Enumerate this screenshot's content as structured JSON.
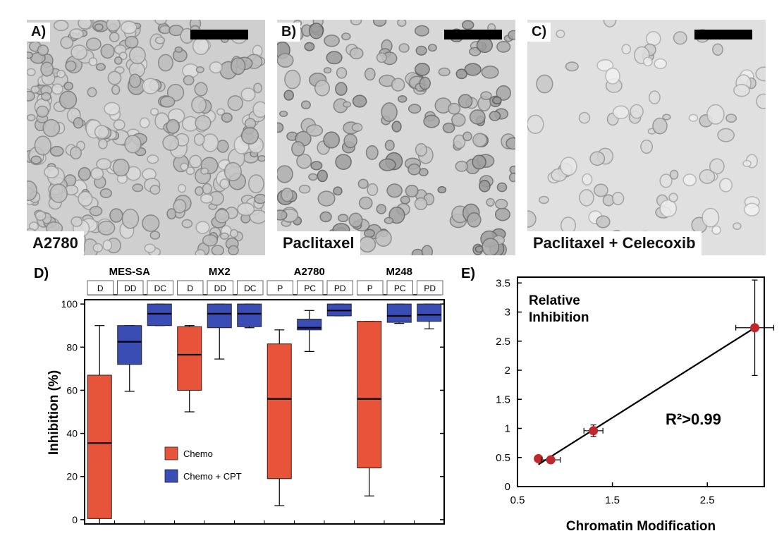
{
  "micrographs": [
    {
      "panel": "A)",
      "caption": "A2780",
      "bg": "#cfcfcf",
      "cellDensity": 0.95,
      "darkness": 0.55
    },
    {
      "panel": "B)",
      "caption": "Paclitaxel",
      "bg": "#d8d8d8",
      "cellDensity": 0.6,
      "darkness": 0.8
    },
    {
      "panel": "C)",
      "caption": "Paclitaxel + Celecoxib",
      "bg": "#e0e0e0",
      "cellDensity": 0.25,
      "darkness": 0.35
    }
  ],
  "chart_data": [
    {
      "panel": "D)",
      "type": "box",
      "ylabel": "Inhibition (%)",
      "ylim": [
        -2,
        102
      ],
      "yticks": [
        0,
        20,
        40,
        60,
        80,
        100
      ],
      "groups": [
        {
          "name": "MES-SA",
          "labels": [
            "D",
            "DD",
            "DC"
          ]
        },
        {
          "name": "MX2",
          "labels": [
            "D",
            "DD",
            "DC"
          ]
        },
        {
          "name": "A2780",
          "labels": [
            "P",
            "PC",
            "PD"
          ]
        },
        {
          "name": "M248",
          "labels": [
            "P",
            "PC",
            "PD"
          ]
        }
      ],
      "legend": [
        {
          "label": "Chemo",
          "color": "#e8543a"
        },
        {
          "label": "Chemo + CPT",
          "color": "#3a4db5"
        }
      ],
      "boxes": [
        {
          "group": 0,
          "slot": 0,
          "series": "Chemo",
          "min": -2,
          "q1": 0.5,
          "median": 35.5,
          "q3": 67,
          "max": 90
        },
        {
          "group": 0,
          "slot": 1,
          "series": "Chemo + CPT",
          "min": 59.5,
          "q1": 72,
          "median": 82.5,
          "q3": 90,
          "max": 90
        },
        {
          "group": 0,
          "slot": 2,
          "series": "Chemo + CPT",
          "min": 90,
          "q1": 90,
          "median": 95.5,
          "q3": 100,
          "max": 100
        },
        {
          "group": 1,
          "slot": 0,
          "series": "Chemo",
          "min": 50,
          "q1": 60,
          "median": 76.5,
          "q3": 89.5,
          "max": 90
        },
        {
          "group": 1,
          "slot": 1,
          "series": "Chemo + CPT",
          "min": 74.5,
          "q1": 89,
          "median": 95.5,
          "q3": 100,
          "max": 100
        },
        {
          "group": 1,
          "slot": 2,
          "series": "Chemo + CPT",
          "min": 89,
          "q1": 89.5,
          "median": 95.5,
          "q3": 100,
          "max": 100
        },
        {
          "group": 2,
          "slot": 0,
          "series": "Chemo",
          "min": 6.5,
          "q1": 19,
          "median": 56,
          "q3": 81.5,
          "max": 88
        },
        {
          "group": 2,
          "slot": 1,
          "series": "Chemo + CPT",
          "min": 78,
          "q1": 88,
          "median": 89,
          "q3": 93,
          "max": 97
        },
        {
          "group": 2,
          "slot": 2,
          "series": "Chemo + CPT",
          "min": 94.5,
          "q1": 94.5,
          "median": 97,
          "q3": 100,
          "max": 100
        },
        {
          "group": 3,
          "slot": 0,
          "series": "Chemo",
          "min": 11,
          "q1": 24,
          "median": 56,
          "q3": 92,
          "max": 92
        },
        {
          "group": 3,
          "slot": 1,
          "series": "Chemo + CPT",
          "min": 91,
          "q1": 91.5,
          "median": 94.5,
          "q3": 100,
          "max": 100
        },
        {
          "group": 3,
          "slot": 2,
          "series": "Chemo + CPT",
          "min": 88.5,
          "q1": 92,
          "median": 95,
          "q3": 100,
          "max": 100
        }
      ]
    },
    {
      "panel": "E)",
      "type": "scatter",
      "title": "Relative Inhibition",
      "xlabel": "Chromatin Modification",
      "xlim": [
        0.5,
        3.1
      ],
      "ylim": [
        0,
        3.6
      ],
      "xticks": [
        "0.5",
        "1.5",
        "2.5"
      ],
      "xtickValues": [
        0.5,
        1.5,
        2.5
      ],
      "yticks": [
        "0",
        "0.5",
        "1",
        "1.5",
        "2",
        "2.5",
        "3",
        "3.5"
      ],
      "ytickValues": [
        0,
        0.5,
        1,
        1.5,
        2,
        2.5,
        3,
        3.5
      ],
      "annotation": "R²>0.99",
      "pointColor": "#c0282d",
      "points": [
        {
          "x": 0.72,
          "y": 0.48,
          "xerr": 0,
          "yerr": 0
        },
        {
          "x": 0.85,
          "y": 0.46,
          "xerr": 0.1,
          "yerr": 0
        },
        {
          "x": 1.3,
          "y": 0.96,
          "xerr": 0.1,
          "yerr": 0.1
        },
        {
          "x": 3.0,
          "y": 2.73,
          "xerr": 0.2,
          "yerr": 0.82
        }
      ],
      "fit": [
        [
          0.72,
          0.38
        ],
        [
          3.0,
          2.73
        ]
      ]
    }
  ]
}
